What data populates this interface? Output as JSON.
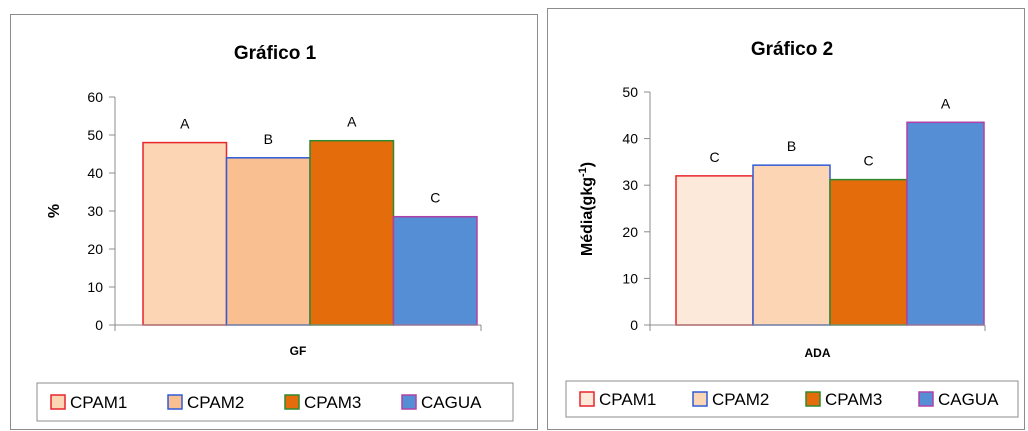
{
  "chart_data": [
    {
      "type": "bar",
      "title": "Gráfico 1",
      "xlabel": "",
      "ylabel": "%",
      "categories": [
        "GF"
      ],
      "ylim": [
        0,
        60
      ],
      "yticks": [
        0,
        10,
        20,
        30,
        40,
        50,
        60
      ],
      "series": [
        {
          "name": "CPAM1",
          "values": [
            48
          ],
          "label": "A",
          "fill": "#fcd5b5",
          "stroke": "#e8252a"
        },
        {
          "name": "CPAM2",
          "values": [
            44
          ],
          "label": "B",
          "fill": "#f9bf91",
          "stroke": "#2e5bd9"
        },
        {
          "name": "CPAM3",
          "values": [
            48.5
          ],
          "label": "A",
          "fill": "#e46c0a",
          "stroke": "#2e8a2e"
        },
        {
          "name": "CAGUA",
          "values": [
            28.5
          ],
          "label": "C",
          "fill": "#558ed5",
          "stroke": "#b040a8"
        }
      ],
      "legend": "bottom",
      "grid": false
    },
    {
      "type": "bar",
      "title": "Gráfico 2",
      "xlabel": "",
      "ylabel": "Média(gkg-1)",
      "categories": [
        "ADA"
      ],
      "ylim": [
        0,
        50
      ],
      "yticks": [
        0,
        10,
        20,
        30,
        40,
        50
      ],
      "series": [
        {
          "name": "CPAM1",
          "values": [
            32
          ],
          "label": "C",
          "fill": "#fde9d9",
          "stroke": "#e8252a"
        },
        {
          "name": "CPAM2",
          "values": [
            34.3
          ],
          "label": "B",
          "fill": "#fcd5b5",
          "stroke": "#2e5bd9"
        },
        {
          "name": "CPAM3",
          "values": [
            31.2
          ],
          "label": "C",
          "fill": "#e46c0a",
          "stroke": "#2e8a2e"
        },
        {
          "name": "CAGUA",
          "values": [
            43.5
          ],
          "label": "A",
          "fill": "#558ed5",
          "stroke": "#b040a8"
        }
      ],
      "legend": "bottom",
      "grid": false
    }
  ]
}
